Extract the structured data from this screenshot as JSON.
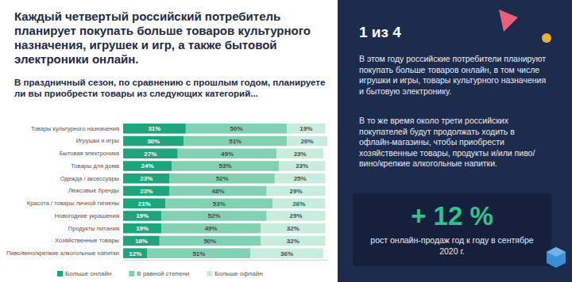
{
  "chart_data": {
    "type": "bar",
    "title": "Каждый четвертый российский потребитель планирует покупать больше товаров культурного назначения, игрушек и игр, а также бытовой электроники онлайн.",
    "subtitle": "В праздничный сезон, по сравнению с прошлым годом, планируете ли вы приобрести товары из следующих категорий...",
    "orientation": "horizontal",
    "stacked": true,
    "data_labels": true,
    "tick_labels": "y",
    "legend": "bottom",
    "xlim": [
      0,
      101
    ],
    "categories": [
      "Товары культурного назначения",
      "Игрушки и игры",
      "Бытовая электроника",
      "Товары для дома",
      "Одежда / аксессуары",
      "Люксовые бренды",
      "Красота / товары личной гигиены",
      "Новогодние украшения",
      "Продукты питания",
      "Хозяйственные товары",
      "Пиво/вино/крепкие алкогольные напитки"
    ],
    "series": [
      {
        "name": "Больше онлайн",
        "color": "#1fa57b",
        "values": [
          31,
          30,
          27,
          24,
          23,
          23,
          21,
          19,
          19,
          18,
          12
        ],
        "value_labels": [
          "31%",
          "30%",
          "27%",
          "24%",
          "23%",
          "23%",
          "21%",
          "19%",
          "19%",
          "18%",
          "12%"
        ]
      },
      {
        "name": "В равной степени",
        "color": "#82d1b4",
        "values": [
          50,
          51,
          49,
          53,
          52,
          48,
          53,
          52,
          49,
          50,
          51
        ],
        "value_labels": [
          "50%",
          "51%",
          "49%",
          "53%",
          "52%",
          "48%",
          "53%",
          "52%",
          "49%",
          "50%",
          "51%"
        ]
      },
      {
        "name": "Больше офлайн",
        "color": "#c8ecde",
        "values": [
          19,
          20,
          23,
          23,
          25,
          29,
          26,
          29,
          32,
          32,
          36
        ],
        "value_labels": [
          "19%",
          "20%",
          "23%",
          "23%",
          "25%",
          "29%",
          "26%",
          "29%",
          "32%",
          "32%",
          "36%"
        ]
      }
    ]
  },
  "panel": {
    "heading": "1 из 4",
    "paragraphs": [
      "В этом году российские потребители планируют покупать больше товаров онлайн, в том числе игрушки и игры, товары культурного назначения и бытовую электронику.",
      "В то же время около трети российских покупателей будут продолжать ходить в офлайн-магазины, чтобы приобрести хозяйственные товары, продукты и/или пиво/вино/крепкие алкогольные напитки."
    ],
    "stat": "+ 12 %",
    "stat_caption": "рост онлайн-продаж год к году в сентябре 2020 г."
  }
}
